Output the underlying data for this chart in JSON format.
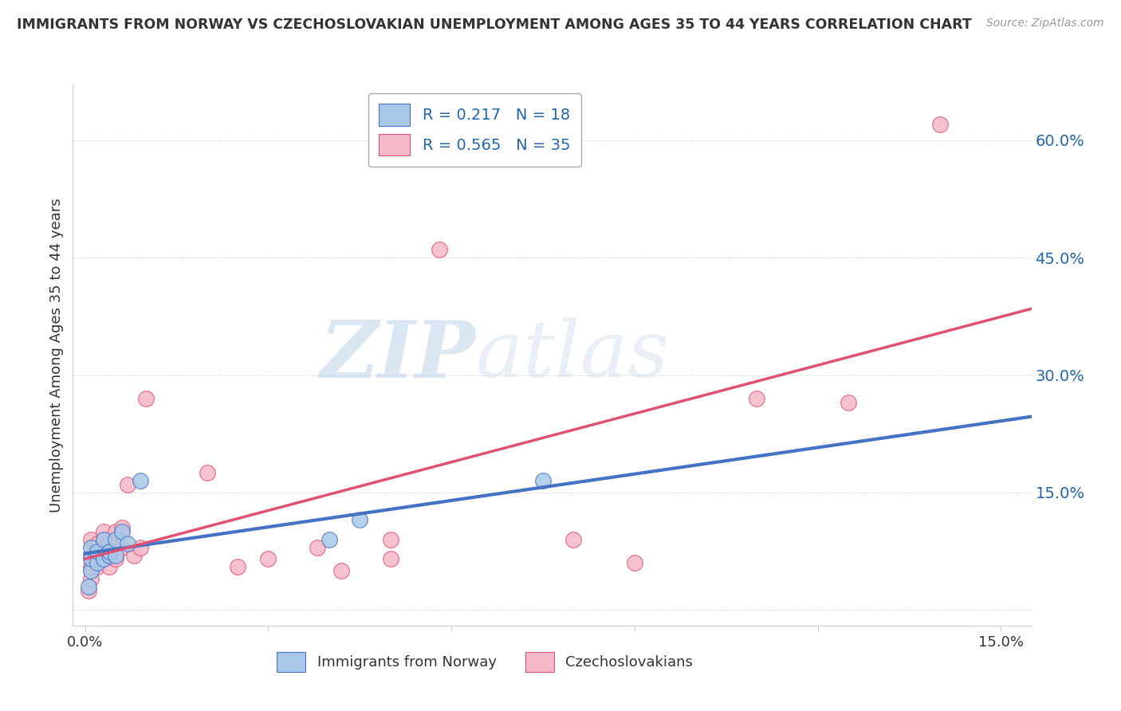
{
  "title": "IMMIGRANTS FROM NORWAY VS CZECHOSLOVAKIAN UNEMPLOYMENT AMONG AGES 35 TO 44 YEARS CORRELATION CHART",
  "source": "Source: ZipAtlas.com",
  "xlabel": "",
  "ylabel": "Unemployment Among Ages 35 to 44 years",
  "xlim": [
    -0.002,
    0.155
  ],
  "ylim": [
    -0.02,
    0.67
  ],
  "yticks_right": [
    0.0,
    0.15,
    0.3,
    0.45,
    0.6
  ],
  "ytick_right_labels": [
    "",
    "15.0%",
    "30.0%",
    "45.0%",
    "60.0%"
  ],
  "legend1_label": "R = 0.217   N = 18",
  "legend2_label": "R = 0.565   N = 35",
  "legend_xlabel": "Immigrants from Norway",
  "legend_ylabel": "Czechoslovakians",
  "blue_color": "#a8c8e8",
  "pink_color": "#f5b8c8",
  "blue_line_color": "#4472c4",
  "pink_line_color": "#e05070",
  "norway_x": [
    0.0005,
    0.001,
    0.001,
    0.001,
    0.002,
    0.002,
    0.003,
    0.003,
    0.004,
    0.004,
    0.005,
    0.005,
    0.006,
    0.007,
    0.009,
    0.04,
    0.045,
    0.075
  ],
  "norway_y": [
    0.03,
    0.05,
    0.065,
    0.08,
    0.06,
    0.075,
    0.065,
    0.09,
    0.07,
    0.075,
    0.07,
    0.09,
    0.1,
    0.085,
    0.165,
    0.09,
    0.115,
    0.165
  ],
  "czech_x": [
    0.0005,
    0.001,
    0.001,
    0.001,
    0.001,
    0.002,
    0.002,
    0.002,
    0.003,
    0.003,
    0.003,
    0.003,
    0.004,
    0.004,
    0.005,
    0.005,
    0.006,
    0.006,
    0.007,
    0.008,
    0.009,
    0.01,
    0.02,
    0.025,
    0.03,
    0.038,
    0.042,
    0.05,
    0.05,
    0.058,
    0.08,
    0.09,
    0.11,
    0.125,
    0.14
  ],
  "czech_y": [
    0.025,
    0.04,
    0.055,
    0.07,
    0.09,
    0.055,
    0.065,
    0.085,
    0.065,
    0.075,
    0.09,
    0.1,
    0.055,
    0.085,
    0.065,
    0.1,
    0.08,
    0.105,
    0.16,
    0.07,
    0.08,
    0.27,
    0.175,
    0.055,
    0.065,
    0.08,
    0.05,
    0.065,
    0.09,
    0.46,
    0.09,
    0.06,
    0.27,
    0.265,
    0.62
  ],
  "watermark_zip": "ZIP",
  "watermark_atlas": "atlas",
  "background_color": "#ffffff",
  "grid_color": "#cccccc",
  "title_color": "#333333",
  "source_color": "#999999",
  "axis_color": "#2166ac",
  "text_color": "#333333"
}
